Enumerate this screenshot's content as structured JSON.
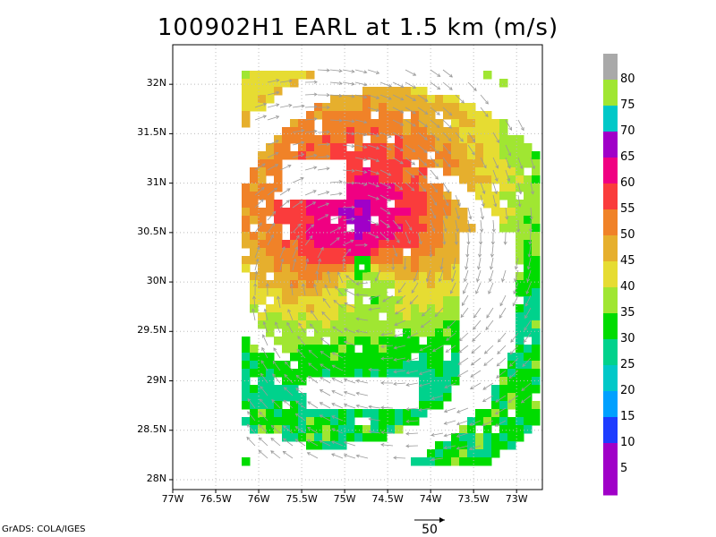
{
  "title": "100902H1 EARL at 1.5 km (m/s)",
  "credit": "GrADS: COLA/IGES",
  "map": {
    "lat_labels": [
      "32N",
      "31.5N",
      "31N",
      "30.5N",
      "30N",
      "29.5N",
      "29N",
      "28.5N",
      "28N"
    ],
    "lat_values": [
      32,
      31.5,
      31,
      30.5,
      30,
      29.5,
      29,
      28.5,
      28
    ],
    "lon_labels": [
      "77W",
      "76.5W",
      "76W",
      "75.5W",
      "75W",
      "74.5W",
      "74W",
      "73.5W",
      "73W"
    ],
    "lon_values": [
      -77,
      -76.5,
      -76,
      -75.5,
      -75,
      -74.5,
      -74,
      -73.5,
      -73
    ],
    "lon_range": [
      -77,
      -72.7
    ],
    "lat_range": [
      27.9,
      32.4
    ],
    "storm_center": {
      "lon": -74.8,
      "lat": 30.15
    },
    "gridlines": "dotted"
  },
  "colorbar": {
    "labels": [
      "80",
      "75",
      "70",
      "65",
      "60",
      "55",
      "50",
      "45",
      "40",
      "35",
      "30",
      "25",
      "20",
      "15",
      "10",
      "5"
    ],
    "colors": [
      "#a9a9a9",
      "#a0e632",
      "#00c8c8",
      "#a000c8",
      "#f00082",
      "#fa3c3c",
      "#f08228",
      "#e6af2d",
      "#e6dc32",
      "#a0e632",
      "#00dc00",
      "#00d28c",
      "#00c8c8",
      "#00a0ff",
      "#1e3cff",
      "#a000c8",
      "#a000c8"
    ]
  },
  "reference_vector": {
    "label": "50"
  }
}
